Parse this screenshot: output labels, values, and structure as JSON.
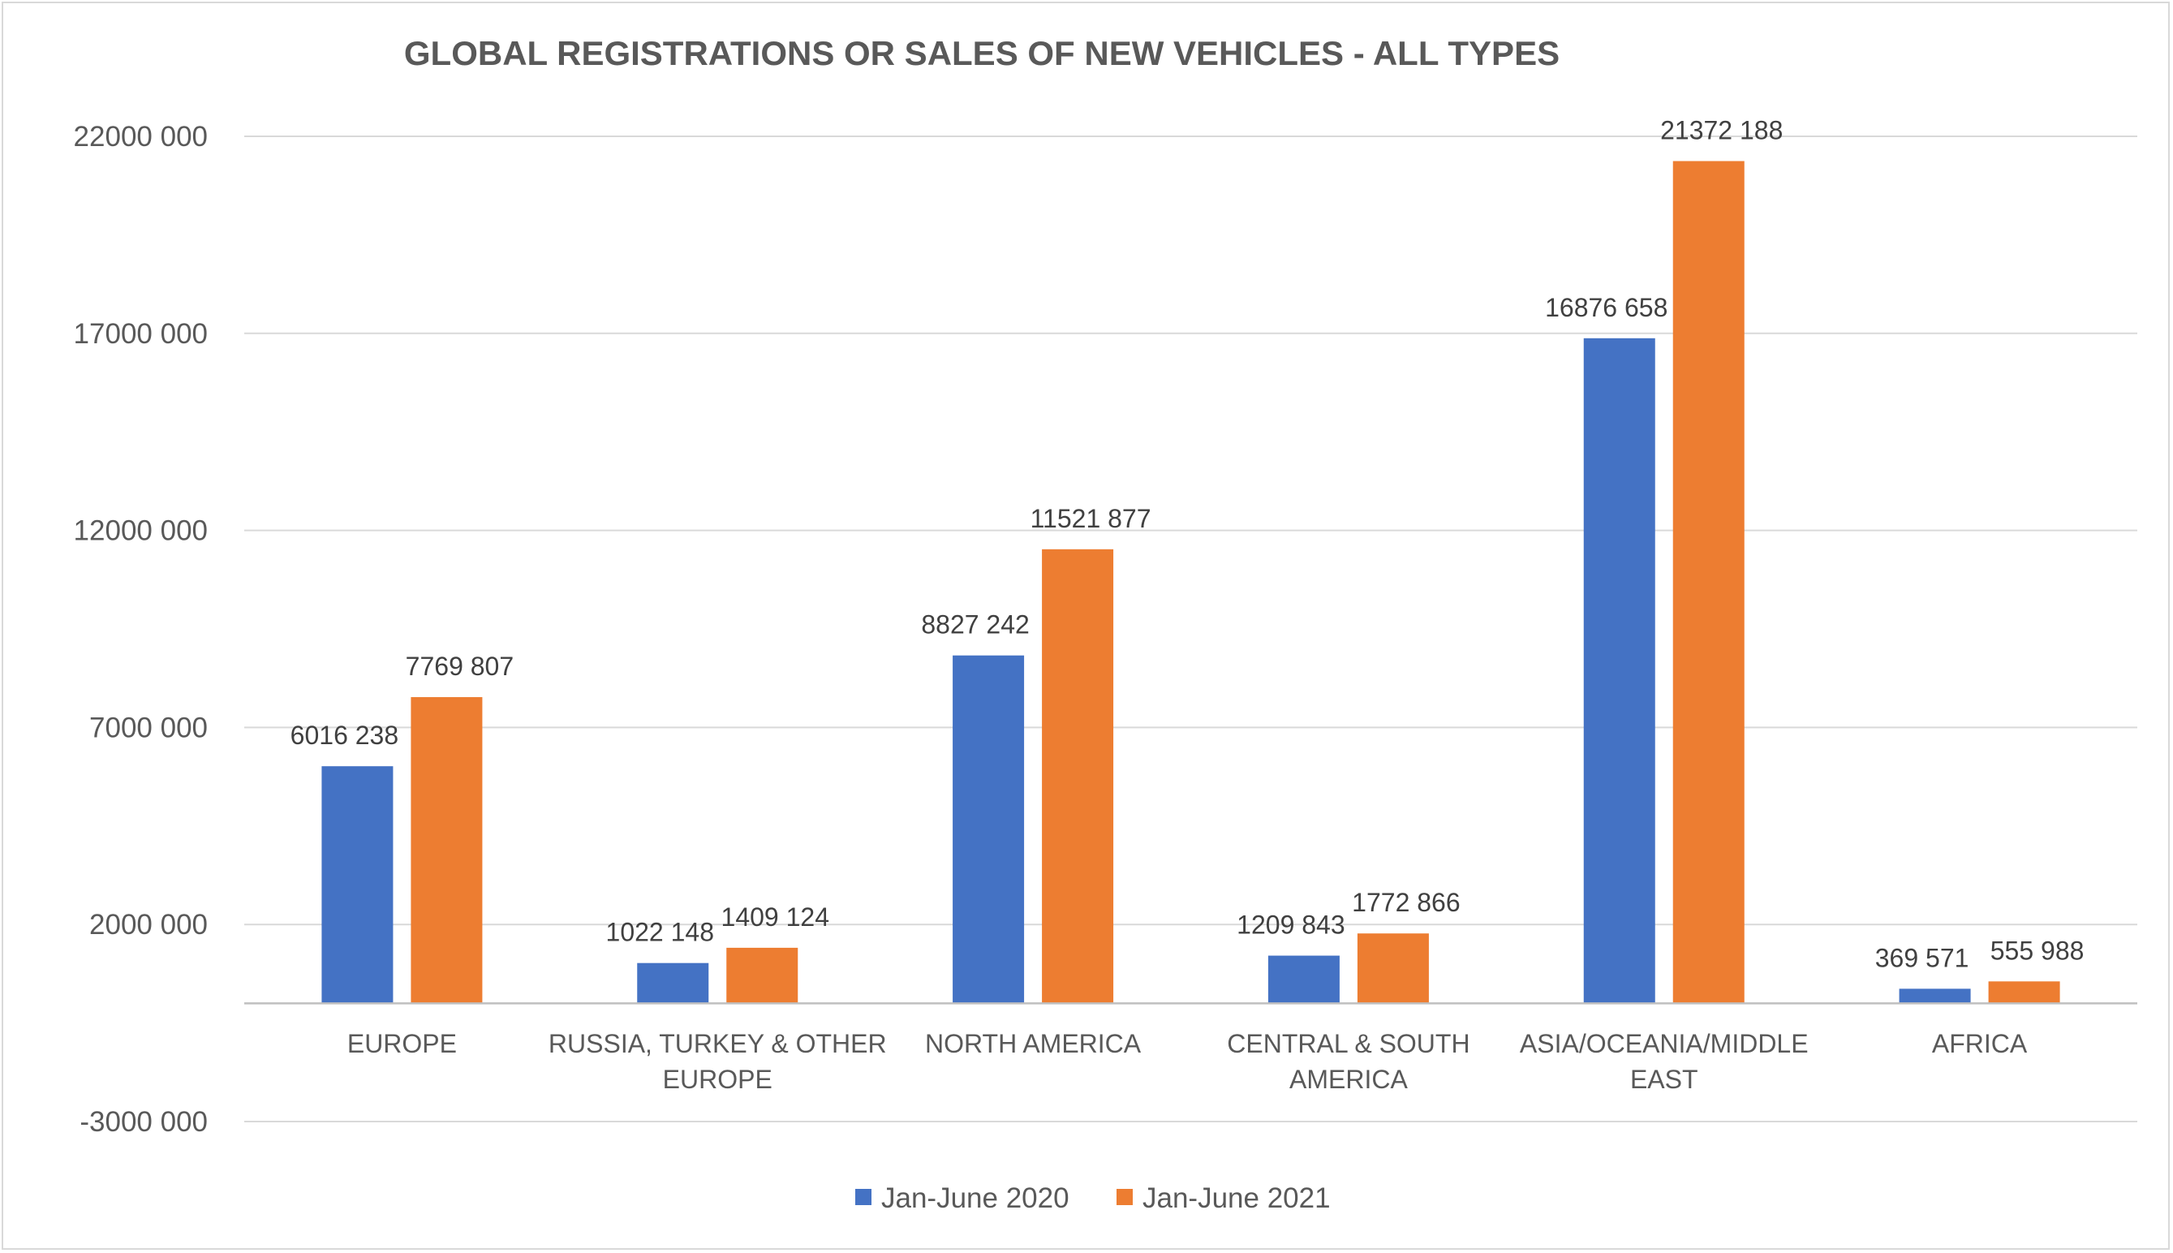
{
  "chart_data": {
    "type": "bar",
    "title": "GLOBAL REGISTRATIONS OR SALES OF NEW VEHICLES - ALL TYPES",
    "xlabel": "",
    "ylabel": "",
    "categories": [
      [
        "EUROPE"
      ],
      [
        "RUSSIA, TURKEY & OTHER",
        "EUROPE"
      ],
      [
        "NORTH AMERICA"
      ],
      [
        "CENTRAL & SOUTH",
        "AMERICA"
      ],
      [
        "ASIA/OCEANIA/MIDDLE",
        "EAST"
      ],
      [
        "AFRICA"
      ]
    ],
    "series": [
      {
        "name": "Jan-June 2020",
        "color": "#4472c4",
        "values": [
          6016238,
          1022148,
          8827242,
          1209843,
          16876658,
          369571
        ],
        "labels": [
          "6016 238",
          "1022 148",
          "8827 242",
          "1209 843",
          "16876 658",
          "369 571"
        ]
      },
      {
        "name": "Jan-June 2021",
        "color": "#ed7d31",
        "values": [
          7769807,
          1409124,
          11521877,
          1772866,
          21372188,
          555988
        ],
        "labels": [
          "7769 807",
          "1409 124",
          "11521 877",
          "1772 866",
          "21372 188",
          "555 988"
        ]
      }
    ],
    "yticks": [
      22000000,
      17000000,
      12000000,
      7000000,
      2000000,
      -3000000
    ],
    "ytick_labels": [
      "22000 000",
      "17000 000",
      "12000 000",
      "7000 000",
      "2000 000",
      "-3000 000"
    ],
    "ylim": [
      -3000000,
      22000000
    ],
    "grid": true,
    "legend": "bottom-center",
    "colors": {
      "gridline": "#d9d9d9",
      "axis": "#bfbfbf",
      "text": "#595959"
    }
  }
}
